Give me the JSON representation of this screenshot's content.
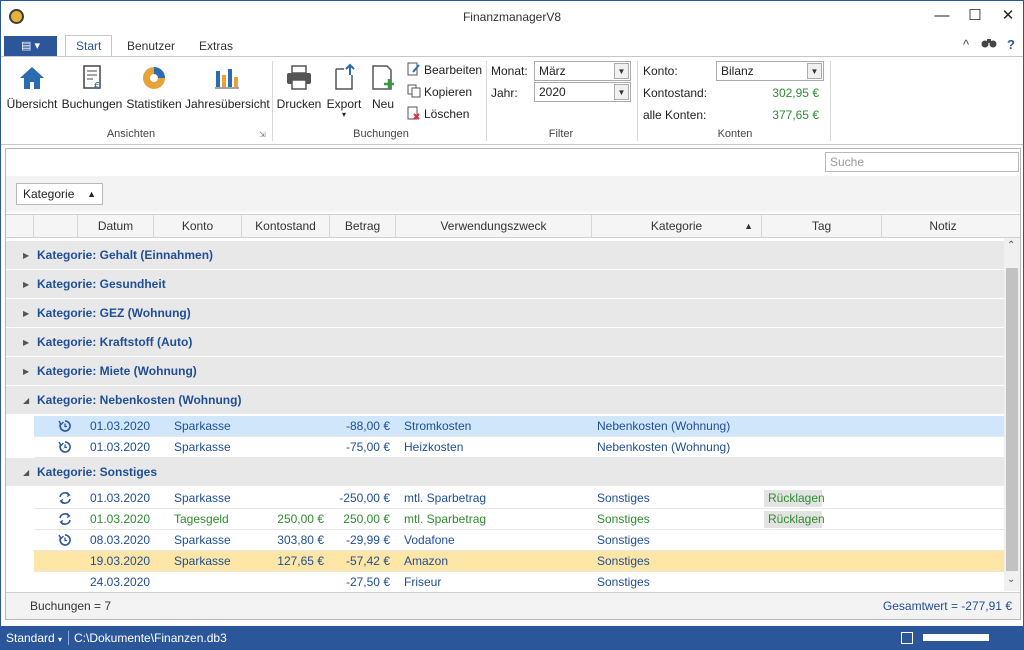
{
  "app": {
    "title": "FinanzmanagerV8"
  },
  "window_controls": {
    "minimize": "—",
    "maximize": "☐",
    "close": "✕"
  },
  "tabs": [
    {
      "label": "Start"
    },
    {
      "label": "Benutzer"
    },
    {
      "label": "Extras"
    }
  ],
  "tab_right": {
    "collapse": "^",
    "help": "?"
  },
  "ribbon": {
    "ansichten": {
      "buttons": [
        {
          "label": "Übersicht"
        },
        {
          "label": "Buchungen"
        },
        {
          "label": "Statistiken"
        },
        {
          "label": "Jahresübersicht"
        }
      ],
      "group_label": "Ansichten"
    },
    "buchungen": {
      "buttons": [
        {
          "label": "Drucken"
        },
        {
          "label": "Export"
        },
        {
          "label": "Neu"
        }
      ],
      "small": [
        {
          "label": "Bearbeiten"
        },
        {
          "label": "Kopieren"
        },
        {
          "label": "Löschen"
        }
      ],
      "group_label": "Buchungen"
    },
    "filter": {
      "monat_label": "Monat:",
      "monat_value": "März",
      "jahr_label": "Jahr:",
      "jahr_value": "2020",
      "group_label": "Filter"
    },
    "konten": {
      "konto_label": "Konto:",
      "konto_value": "Bilanz",
      "kontostand_label": "Kontostand:",
      "kontostand_value": "302,95 €",
      "alle_label": "alle Konten:",
      "alle_value": "377,65 €",
      "group_label": "Konten"
    }
  },
  "search": {
    "placeholder": "Suche"
  },
  "grouping": {
    "chip": "Kategorie"
  },
  "columns": [
    "Datum",
    "Konto",
    "Kontostand",
    "Betrag",
    "Verwendungszweck",
    "Kategorie",
    "Tag",
    "Notiz"
  ],
  "groups": [
    {
      "title": "Kategorie: Gehalt (Einnahmen)",
      "expanded": false,
      "rows": []
    },
    {
      "title": "Kategorie: Gesundheit",
      "expanded": false,
      "rows": []
    },
    {
      "title": "Kategorie: GEZ (Wohnung)",
      "expanded": false,
      "rows": []
    },
    {
      "title": "Kategorie: Kraftstoff (Auto)",
      "expanded": false,
      "rows": []
    },
    {
      "title": "Kategorie: Miete (Wohnung)",
      "expanded": false,
      "rows": []
    },
    {
      "title": "Kategorie: Nebenkosten (Wohnung)",
      "expanded": true,
      "rows": [
        {
          "icon": "recurring",
          "datum": "01.03.2020",
          "konto": "Sparkasse",
          "kontostand": "",
          "betrag": "-88,00 €",
          "zweck": "Stromkosten",
          "kategorie": "Nebenkosten (Wohnung)",
          "tag": "",
          "notiz": "",
          "color": "#1f4e96",
          "bg": "#cfe6fb"
        },
        {
          "icon": "recurring",
          "datum": "01.03.2020",
          "konto": "Sparkasse",
          "kontostand": "",
          "betrag": "-75,00 €",
          "zweck": "Heizkosten",
          "kategorie": "Nebenkosten (Wohnung)",
          "tag": "",
          "notiz": "",
          "color": "#1f4e96",
          "bg": "#ffffff"
        }
      ]
    },
    {
      "title": "Kategorie: Sonstiges",
      "expanded": true,
      "rows": [
        {
          "icon": "transfer",
          "datum": "01.03.2020",
          "konto": "Sparkasse",
          "kontostand": "",
          "betrag": "-250,00 €",
          "zweck": "mtl. Sparbetrag",
          "kategorie": "Sonstiges",
          "tag": "Rücklagen",
          "notiz": "",
          "color": "#1f4e96",
          "bg": "#ffffff"
        },
        {
          "icon": "transfer",
          "datum": "01.03.2020",
          "konto": "Tagesgeld",
          "kontostand": "250,00 €",
          "betrag": "250,00 €",
          "zweck": "mtl. Sparbetrag",
          "kategorie": "Sonstiges",
          "tag": "Rücklagen",
          "notiz": "",
          "color": "#2e8b2e",
          "bg": "#ffffff"
        },
        {
          "icon": "recurring",
          "datum": "08.03.2020",
          "konto": "Sparkasse",
          "kontostand": "303,80 €",
          "betrag": "-29,99 €",
          "zweck": "Vodafone",
          "kategorie": "Sonstiges",
          "tag": "",
          "notiz": "",
          "color": "#1f4e96",
          "bg": "#ffffff"
        },
        {
          "icon": "",
          "datum": "19.03.2020",
          "konto": "Sparkasse",
          "kontostand": "127,65 €",
          "betrag": "-57,42 €",
          "zweck": "Amazon",
          "kategorie": "Sonstiges",
          "tag": "",
          "notiz": "",
          "color": "#1f4e96",
          "bg": "#fde6a6"
        },
        {
          "icon": "",
          "datum": "24.03.2020",
          "konto": "",
          "kontostand": "",
          "betrag": "-27,50 €",
          "zweck": "Friseur",
          "kategorie": "Sonstiges",
          "tag": "",
          "notiz": "",
          "color": "#1f4e96",
          "bg": "#ffffff"
        }
      ]
    }
  ],
  "footer": {
    "count": "Buchungen = 7",
    "total": "Gesamtwert = -277,91 €"
  },
  "statusbar": {
    "profile": "Standard",
    "path": "C:\\Dokumente\\Finanzen.db3"
  },
  "colors": {
    "accent": "#2b579a",
    "link_blue": "#1f4e96",
    "positive_green": "#2e8b2e",
    "selected_row": "#cfe6fb",
    "highlight_row": "#fde6a6"
  }
}
